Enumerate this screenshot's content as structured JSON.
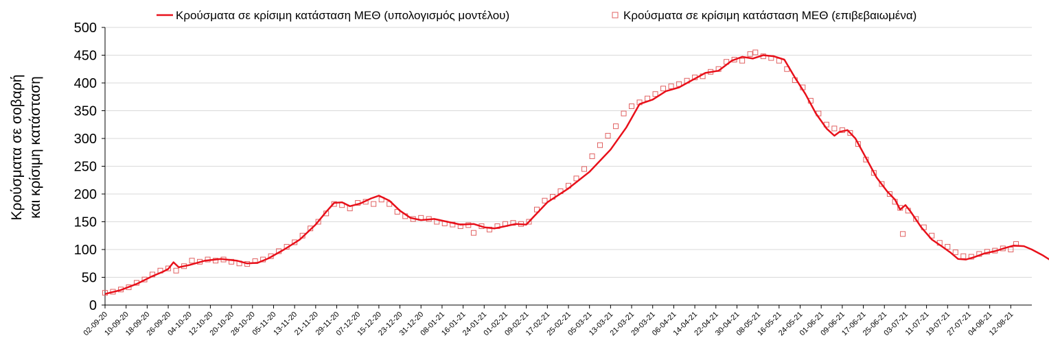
{
  "chart_data": {
    "type": "line",
    "title": "",
    "ylabel_line1": "Κρούσματα σε σοβαρή",
    "ylabel_line2": "και κρίσιμη κατάσταση",
    "xlabel": "",
    "ylim": [
      0,
      500
    ],
    "yticks": [
      0,
      50,
      100,
      150,
      200,
      250,
      300,
      350,
      400,
      450,
      500
    ],
    "xrange": [
      "2020-09-02",
      "2021-08-20"
    ],
    "grid": true,
    "legend_position": "top",
    "colors": {
      "model": "#e8101a",
      "confirmed": "#e06060"
    },
    "xticks": [
      {
        "date": "2020-09-02",
        "label": "02-09-20"
      },
      {
        "date": "2020-09-10",
        "label": "10-09-20"
      },
      {
        "date": "2020-09-18",
        "label": "18-09-20"
      },
      {
        "date": "2020-09-26",
        "label": "26-09-20"
      },
      {
        "date": "2020-10-04",
        "label": "04-10-20"
      },
      {
        "date": "2020-10-12",
        "label": "12-10-20"
      },
      {
        "date": "2020-10-20",
        "label": "20-10-20"
      },
      {
        "date": "2020-10-28",
        "label": "28-10-20"
      },
      {
        "date": "2020-11-05",
        "label": "05-11-20"
      },
      {
        "date": "2020-11-13",
        "label": "13-11-20"
      },
      {
        "date": "2020-11-21",
        "label": "21-11-20"
      },
      {
        "date": "2020-11-29",
        "label": "29-11-20"
      },
      {
        "date": "2020-12-07",
        "label": "07-12-20"
      },
      {
        "date": "2020-12-15",
        "label": "15-12-20"
      },
      {
        "date": "2020-12-23",
        "label": "23-12-20"
      },
      {
        "date": "2020-12-31",
        "label": "31-12-20"
      },
      {
        "date": "2021-01-08",
        "label": "08-01-21"
      },
      {
        "date": "2021-01-16",
        "label": "16-01-21"
      },
      {
        "date": "2021-01-24",
        "label": "24-01-21"
      },
      {
        "date": "2021-02-01",
        "label": "01-02-21"
      },
      {
        "date": "2021-02-09",
        "label": "09-02-21"
      },
      {
        "date": "2021-02-17",
        "label": "17-02-21"
      },
      {
        "date": "2021-02-25",
        "label": "25-02-21"
      },
      {
        "date": "2021-03-05",
        "label": "05-03-21"
      },
      {
        "date": "2021-03-13",
        "label": "13-03-21"
      },
      {
        "date": "2021-03-21",
        "label": "21-03-21"
      },
      {
        "date": "2021-03-29",
        "label": "29-03-21"
      },
      {
        "date": "2021-04-06",
        "label": "06-04-21"
      },
      {
        "date": "2021-04-14",
        "label": "14-04-21"
      },
      {
        "date": "2021-04-22",
        "label": "22-04-21"
      },
      {
        "date": "2021-04-30",
        "label": "30-04-21"
      },
      {
        "date": "2021-05-08",
        "label": "08-05-21"
      },
      {
        "date": "2021-05-16",
        "label": "16-05-21"
      },
      {
        "date": "2021-05-24",
        "label": "24-05-21"
      },
      {
        "date": "2021-06-01",
        "label": "01-06-21"
      },
      {
        "date": "2021-06-09",
        "label": "09-06-21"
      },
      {
        "date": "2021-06-17",
        "label": "17-06-21"
      },
      {
        "date": "2021-06-25",
        "label": "25-06-21"
      },
      {
        "date": "2021-07-03",
        "label": "03-07-21"
      },
      {
        "date": "2021-07-11",
        "label": "11-07-21"
      },
      {
        "date": "2021-07-19",
        "label": "19-07-21"
      },
      {
        "date": "2021-07-27",
        "label": "27-07-21"
      },
      {
        "date": "2021-08-04",
        "label": "04-08-21"
      },
      {
        "date": "2021-08-12",
        "label": "12-08-21"
      }
    ],
    "series": [
      {
        "name": "Κρούσματα σε κρίσιμη κατάσταση ΜΕΘ (υπολογισμός μοντέλου)",
        "style": "line",
        "points": [
          [
            "2020-09-02",
            20
          ],
          [
            "2020-09-08",
            27
          ],
          [
            "2020-09-14",
            38
          ],
          [
            "2020-09-20",
            52
          ],
          [
            "2020-09-24",
            60
          ],
          [
            "2020-09-26",
            65
          ],
          [
            "2020-09-28",
            77
          ],
          [
            "2020-09-30",
            68
          ],
          [
            "2020-10-04",
            72
          ],
          [
            "2020-10-10",
            80
          ],
          [
            "2020-10-16",
            83
          ],
          [
            "2020-10-22",
            80
          ],
          [
            "2020-10-26",
            75
          ],
          [
            "2020-10-30",
            76
          ],
          [
            "2020-11-03",
            84
          ],
          [
            "2020-11-09",
            100
          ],
          [
            "2020-11-15",
            118
          ],
          [
            "2020-11-21",
            145
          ],
          [
            "2020-11-25",
            168
          ],
          [
            "2020-11-28",
            184
          ],
          [
            "2020-12-01",
            185
          ],
          [
            "2020-12-04",
            178
          ],
          [
            "2020-12-08",
            183
          ],
          [
            "2020-12-12",
            192
          ],
          [
            "2020-12-15",
            197
          ],
          [
            "2020-12-19",
            188
          ],
          [
            "2020-12-23",
            170
          ],
          [
            "2020-12-27",
            157
          ],
          [
            "2020-12-31",
            153
          ],
          [
            "2021-01-05",
            155
          ],
          [
            "2021-01-10",
            150
          ],
          [
            "2021-01-15",
            145
          ],
          [
            "2021-01-20",
            146
          ],
          [
            "2021-01-24",
            140
          ],
          [
            "2021-01-28",
            138
          ],
          [
            "2021-02-01",
            142
          ],
          [
            "2021-02-05",
            146
          ],
          [
            "2021-02-09",
            145
          ],
          [
            "2021-02-12",
            160
          ],
          [
            "2021-02-17",
            185
          ],
          [
            "2021-02-25",
            210
          ],
          [
            "2021-03-05",
            240
          ],
          [
            "2021-03-13",
            280
          ],
          [
            "2021-03-19",
            320
          ],
          [
            "2021-03-24",
            362
          ],
          [
            "2021-03-29",
            370
          ],
          [
            "2021-04-03",
            385
          ],
          [
            "2021-04-08",
            392
          ],
          [
            "2021-04-13",
            405
          ],
          [
            "2021-04-18",
            418
          ],
          [
            "2021-04-23",
            422
          ],
          [
            "2021-04-28",
            440
          ],
          [
            "2021-05-02",
            447
          ],
          [
            "2021-05-06",
            444
          ],
          [
            "2021-05-10",
            450
          ],
          [
            "2021-05-14",
            448
          ],
          [
            "2021-05-18",
            442
          ],
          [
            "2021-05-22",
            410
          ],
          [
            "2021-05-26",
            380
          ],
          [
            "2021-05-30",
            345
          ],
          [
            "2021-06-03",
            318
          ],
          [
            "2021-06-06",
            305
          ],
          [
            "2021-06-08",
            312
          ],
          [
            "2021-06-11",
            315
          ],
          [
            "2021-06-14",
            300
          ],
          [
            "2021-06-18",
            265
          ],
          [
            "2021-06-22",
            230
          ],
          [
            "2021-06-26",
            205
          ],
          [
            "2021-06-29",
            190
          ],
          [
            "2021-07-01",
            172
          ],
          [
            "2021-07-03",
            180
          ],
          [
            "2021-07-05",
            168
          ],
          [
            "2021-07-09",
            140
          ],
          [
            "2021-07-13",
            118
          ],
          [
            "2021-07-17",
            105
          ],
          [
            "2021-07-20",
            95
          ],
          [
            "2021-07-23",
            83
          ],
          [
            "2021-07-26",
            82
          ],
          [
            "2021-07-29",
            86
          ],
          [
            "2021-08-02",
            93
          ],
          [
            "2021-08-06",
            97
          ],
          [
            "2021-08-10",
            103
          ],
          [
            "2021-08-13",
            107
          ],
          [
            "2021-08-17",
            106
          ],
          [
            "2021-08-20",
            100
          ],
          [
            "2021-08-24",
            90
          ],
          [
            "2021-08-28",
            78
          ],
          [
            "2021-08-30",
            72
          ]
        ]
      },
      {
        "name": "Κρούσματα σε κρίσιμη κατάσταση ΜΕΘ (επιβεβαιωμένα)",
        "style": "markers",
        "points": [
          [
            "2020-09-02",
            22
          ],
          [
            "2020-09-05",
            24
          ],
          [
            "2020-09-08",
            28
          ],
          [
            "2020-09-11",
            32
          ],
          [
            "2020-09-14",
            40
          ],
          [
            "2020-09-17",
            46
          ],
          [
            "2020-09-20",
            55
          ],
          [
            "2020-09-23",
            62
          ],
          [
            "2020-09-26",
            66
          ],
          [
            "2020-09-29",
            62
          ],
          [
            "2020-10-02",
            70
          ],
          [
            "2020-10-05",
            80
          ],
          [
            "2020-10-08",
            78
          ],
          [
            "2020-10-11",
            82
          ],
          [
            "2020-10-14",
            80
          ],
          [
            "2020-10-17",
            82
          ],
          [
            "2020-10-20",
            78
          ],
          [
            "2020-10-23",
            75
          ],
          [
            "2020-10-26",
            74
          ],
          [
            "2020-10-29",
            79
          ],
          [
            "2020-11-01",
            82
          ],
          [
            "2020-11-04",
            88
          ],
          [
            "2020-11-07",
            97
          ],
          [
            "2020-11-10",
            105
          ],
          [
            "2020-11-13",
            113
          ],
          [
            "2020-11-16",
            125
          ],
          [
            "2020-11-19",
            138
          ],
          [
            "2020-11-22",
            150
          ],
          [
            "2020-11-25",
            165
          ],
          [
            "2020-11-28",
            182
          ],
          [
            "2020-12-01",
            180
          ],
          [
            "2020-12-04",
            174
          ],
          [
            "2020-12-07",
            184
          ],
          [
            "2020-12-10",
            186
          ],
          [
            "2020-12-13",
            182
          ],
          [
            "2020-12-16",
            190
          ],
          [
            "2020-12-19",
            182
          ],
          [
            "2020-12-22",
            168
          ],
          [
            "2020-12-25",
            160
          ],
          [
            "2020-12-28",
            155
          ],
          [
            "2020-12-31",
            157
          ],
          [
            "2021-01-03",
            155
          ],
          [
            "2021-01-06",
            150
          ],
          [
            "2021-01-09",
            147
          ],
          [
            "2021-01-12",
            145
          ],
          [
            "2021-01-15",
            142
          ],
          [
            "2021-01-18",
            144
          ],
          [
            "2021-01-20",
            130
          ],
          [
            "2021-01-23",
            142
          ],
          [
            "2021-01-26",
            136
          ],
          [
            "2021-01-29",
            142
          ],
          [
            "2021-02-01",
            146
          ],
          [
            "2021-02-04",
            148
          ],
          [
            "2021-02-07",
            146
          ],
          [
            "2021-02-10",
            150
          ],
          [
            "2021-02-13",
            172
          ],
          [
            "2021-02-16",
            188
          ],
          [
            "2021-02-19",
            195
          ],
          [
            "2021-02-22",
            205
          ],
          [
            "2021-02-25",
            215
          ],
          [
            "2021-02-28",
            228
          ],
          [
            "2021-03-03",
            245
          ],
          [
            "2021-03-06",
            268
          ],
          [
            "2021-03-09",
            288
          ],
          [
            "2021-03-12",
            305
          ],
          [
            "2021-03-15",
            322
          ],
          [
            "2021-03-18",
            345
          ],
          [
            "2021-03-21",
            358
          ],
          [
            "2021-03-24",
            365
          ],
          [
            "2021-03-27",
            372
          ],
          [
            "2021-03-30",
            380
          ],
          [
            "2021-04-02",
            390
          ],
          [
            "2021-04-05",
            394
          ],
          [
            "2021-04-08",
            398
          ],
          [
            "2021-04-11",
            404
          ],
          [
            "2021-04-14",
            410
          ],
          [
            "2021-04-17",
            412
          ],
          [
            "2021-04-20",
            420
          ],
          [
            "2021-04-23",
            425
          ],
          [
            "2021-04-26",
            438
          ],
          [
            "2021-04-29",
            442
          ],
          [
            "2021-05-02",
            440
          ],
          [
            "2021-05-05",
            452
          ],
          [
            "2021-05-07",
            455
          ],
          [
            "2021-05-10",
            448
          ],
          [
            "2021-05-13",
            445
          ],
          [
            "2021-05-16",
            440
          ],
          [
            "2021-05-19",
            425
          ],
          [
            "2021-05-22",
            405
          ],
          [
            "2021-05-25",
            392
          ],
          [
            "2021-05-28",
            368
          ],
          [
            "2021-05-31",
            345
          ],
          [
            "2021-06-03",
            325
          ],
          [
            "2021-06-06",
            318
          ],
          [
            "2021-06-09",
            315
          ],
          [
            "2021-06-12",
            310
          ],
          [
            "2021-06-15",
            290
          ],
          [
            "2021-06-18",
            262
          ],
          [
            "2021-06-21",
            238
          ],
          [
            "2021-06-24",
            218
          ],
          [
            "2021-06-27",
            200
          ],
          [
            "2021-06-29",
            186
          ],
          [
            "2021-07-01",
            175
          ],
          [
            "2021-07-02",
            128
          ],
          [
            "2021-07-04",
            170
          ],
          [
            "2021-07-07",
            155
          ],
          [
            "2021-07-10",
            140
          ],
          [
            "2021-07-13",
            125
          ],
          [
            "2021-07-16",
            112
          ],
          [
            "2021-07-19",
            105
          ],
          [
            "2021-07-22",
            95
          ],
          [
            "2021-07-25",
            88
          ],
          [
            "2021-07-28",
            87
          ],
          [
            "2021-07-31",
            92
          ],
          [
            "2021-08-03",
            96
          ],
          [
            "2021-08-06",
            98
          ],
          [
            "2021-08-09",
            102
          ],
          [
            "2021-08-12",
            100
          ],
          [
            "2021-08-14",
            110
          ]
        ]
      }
    ]
  }
}
